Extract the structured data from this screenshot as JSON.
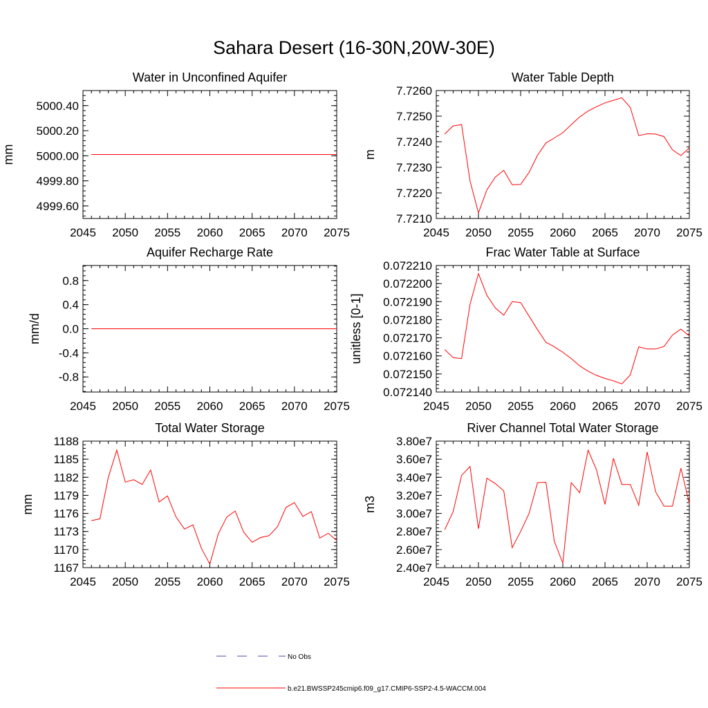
{
  "title": "Sahara Desert (16-30N,20W-30E)",
  "legend": [
    {
      "label": "No Obs",
      "color": "#4a4aa8",
      "style": "dashed"
    },
    {
      "label": "b.e21.BWSSP245cmip6.f09_g17.CMIP6-SSP2-4.5-WACCM.004",
      "color": "#ff0000",
      "style": "solid"
    }
  ],
  "chart_data": [
    {
      "type": "line",
      "title": "Water in Unconfined Aquifer",
      "ylabel": "mm",
      "xlim": [
        2045,
        2075
      ],
      "ylim": [
        4999.5,
        5000.52
      ],
      "xticks": [
        2045,
        2050,
        2055,
        2060,
        2065,
        2070,
        2075
      ],
      "yticks": [
        "4999.60",
        "4999.80",
        "5000.00",
        "5000.20",
        "5000.40"
      ],
      "series": [
        {
          "color": "#ff0000",
          "x": [
            2046,
            2075
          ],
          "y": [
            5000.01,
            5000.01
          ]
        }
      ]
    },
    {
      "type": "line",
      "title": "Water Table Depth",
      "ylabel": "m",
      "xlim": [
        2045,
        2075
      ],
      "ylim": [
        7.721,
        7.726
      ],
      "xticks": [
        2045,
        2050,
        2055,
        2060,
        2065,
        2070,
        2075
      ],
      "yticks": [
        "7.7210",
        "7.7220",
        "7.7230",
        "7.7240",
        "7.7250",
        "7.7260"
      ],
      "series": [
        {
          "color": "#ff0000",
          "x": [
            2046,
            2047,
            2048,
            2049,
            2050,
            2051,
            2052,
            2053,
            2054,
            2055,
            2056,
            2057,
            2058,
            2059,
            2060,
            2061,
            2062,
            2063,
            2064,
            2065,
            2066,
            2067,
            2068,
            2069,
            2070,
            2071,
            2072,
            2073,
            2074,
            2075
          ],
          "y": [
            7.7243,
            7.72462,
            7.72467,
            7.72247,
            7.72122,
            7.72212,
            7.72262,
            7.72288,
            7.72232,
            7.72233,
            7.7228,
            7.72347,
            7.72395,
            7.72415,
            7.72435,
            7.72467,
            7.72497,
            7.7252,
            7.72537,
            7.72552,
            7.72562,
            7.72572,
            7.72534,
            7.72424,
            7.72431,
            7.7243,
            7.7242,
            7.72368,
            7.72346,
            7.72376
          ]
        }
      ]
    },
    {
      "type": "line",
      "title": "Aquifer Recharge Rate",
      "ylabel": "mm/d",
      "xlim": [
        2045,
        2075
      ],
      "ylim": [
        -1.05,
        1.05
      ],
      "xticks": [
        2045,
        2050,
        2055,
        2060,
        2065,
        2070,
        2075
      ],
      "yticks": [
        "-0.8",
        "-0.4",
        "0.0",
        "0.4",
        "0.8"
      ],
      "series": [
        {
          "color": "#ff0000",
          "x": [
            2046,
            2075
          ],
          "y": [
            0.0,
            0.0
          ]
        }
      ]
    },
    {
      "type": "line",
      "title": "Frac Water Table at Surface",
      "ylabel": "unitless [0-1]",
      "xlim": [
        2045,
        2075
      ],
      "ylim": [
        0.07214,
        0.07221
      ],
      "xticks": [
        2045,
        2050,
        2055,
        2060,
        2065,
        2070,
        2075
      ],
      "yticks": [
        "0.072140",
        "0.072150",
        "0.072160",
        "0.072170",
        "0.072180",
        "0.072190",
        "0.072200",
        "0.072210"
      ],
      "series": [
        {
          "color": "#ff0000",
          "x": [
            2046,
            2047,
            2048,
            2049,
            2050,
            2051,
            2052,
            2053,
            2054,
            2055,
            2056,
            2057,
            2058,
            2059,
            2060,
            2061,
            2062,
            2063,
            2064,
            2065,
            2066,
            2067,
            2068,
            2069,
            2070,
            2071,
            2072,
            2073,
            2074,
            2075
          ],
          "y": [
            0.0721635,
            0.072159,
            0.0721585,
            0.0721885,
            0.0722055,
            0.0721935,
            0.0721865,
            0.0721825,
            0.07219,
            0.0721895,
            0.072182,
            0.0721745,
            0.0721675,
            0.072165,
            0.072162,
            0.0721585,
            0.0721545,
            0.0721515,
            0.0721492,
            0.0721475,
            0.0721462,
            0.0721445,
            0.0721495,
            0.072165,
            0.0721638,
            0.0721638,
            0.0721652,
            0.0721715,
            0.0721748,
            0.072171
          ]
        }
      ]
    },
    {
      "type": "line",
      "title": "Total Water Storage",
      "ylabel": "mm",
      "xlim": [
        2045,
        2075
      ],
      "ylim": [
        1167,
        1188
      ],
      "xticks": [
        2045,
        2050,
        2055,
        2060,
        2065,
        2070,
        2075
      ],
      "yticks": [
        "1167",
        "1170",
        "1173",
        "1176",
        "1179",
        "1182",
        "1185",
        "1188"
      ],
      "series": [
        {
          "color": "#ff0000",
          "x": [
            2046,
            2047,
            2048,
            2049,
            2050,
            2051,
            2052,
            2053,
            2054,
            2055,
            2056,
            2057,
            2058,
            2059,
            2060,
            2061,
            2062,
            2063,
            2064,
            2065,
            2066,
            2067,
            2068,
            2069,
            2070,
            2071,
            2072,
            2073,
            2074,
            2075
          ],
          "y": [
            1174.8,
            1175.1,
            1182.0,
            1186.5,
            1181.2,
            1181.6,
            1180.8,
            1183.2,
            1177.9,
            1178.9,
            1175.4,
            1173.4,
            1174.1,
            1170.2,
            1167.6,
            1172.6,
            1175.4,
            1176.4,
            1172.9,
            1171.2,
            1172.0,
            1172.3,
            1173.8,
            1177.0,
            1177.8,
            1175.5,
            1176.3,
            1171.9,
            1172.7,
            1171.5
          ]
        }
      ]
    },
    {
      "type": "line",
      "title": "River Channel Total Water Storage",
      "ylabel": "m3",
      "xlim": [
        2045,
        2075
      ],
      "ylim": [
        24000000,
        38000000
      ],
      "xticks": [
        2045,
        2050,
        2055,
        2060,
        2065,
        2070,
        2075
      ],
      "yticks": [
        "2.40e7",
        "2.60e7",
        "2.80e7",
        "3.00e7",
        "3.20e7",
        "3.40e7",
        "3.60e7",
        "3.80e7"
      ],
      "series": [
        {
          "color": "#ff0000",
          "x": [
            2046,
            2047,
            2048,
            2049,
            2050,
            2051,
            2052,
            2053,
            2054,
            2055,
            2056,
            2057,
            2058,
            2059,
            2060,
            2061,
            2062,
            2063,
            2064,
            2065,
            2066,
            2067,
            2068,
            2069,
            2070,
            2071,
            2072,
            2073,
            2074,
            2075
          ],
          "y": [
            28200000,
            30200000,
            34200000,
            35200000,
            28300000,
            33900000,
            33300000,
            32500000,
            26200000,
            28000000,
            30000000,
            33400000,
            33450000,
            26900000,
            24500000,
            33400000,
            32300000,
            37000000,
            34800000,
            31000000,
            36100000,
            33200000,
            33200000,
            30900000,
            36800000,
            32400000,
            30800000,
            30800000,
            35000000,
            31100000
          ]
        }
      ]
    }
  ]
}
